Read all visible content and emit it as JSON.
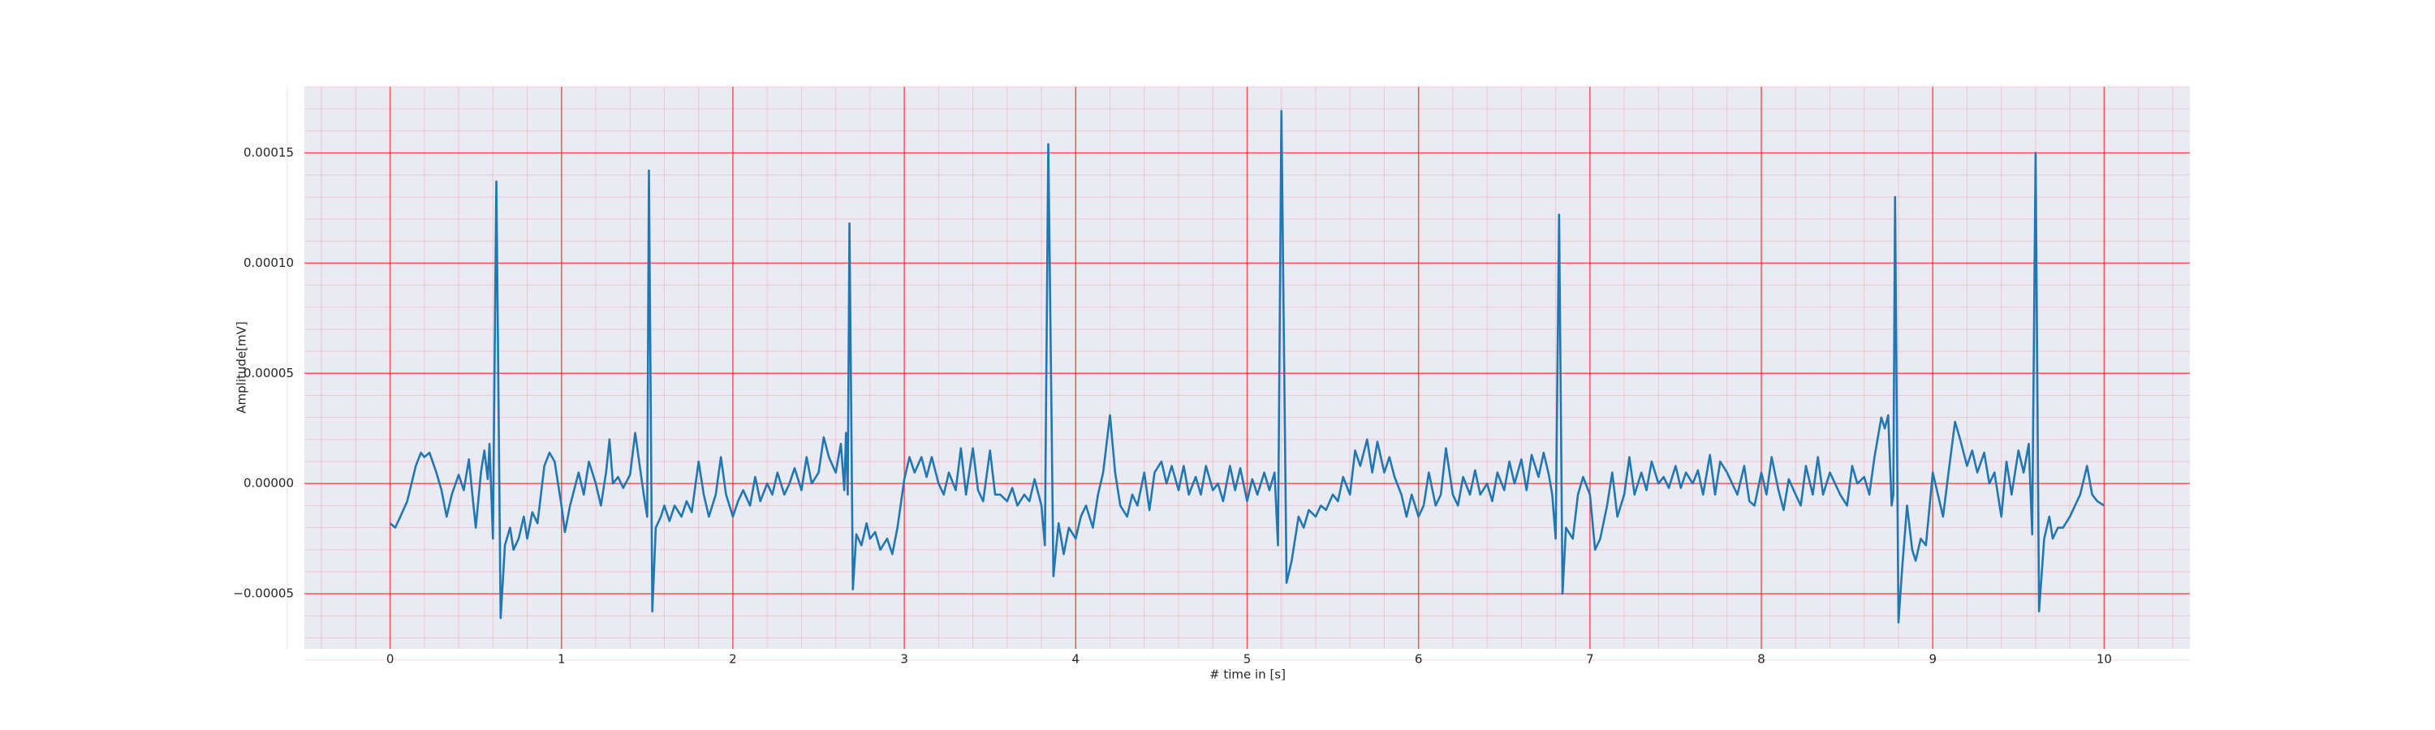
{
  "chart_data": {
    "type": "line",
    "xlabel": "# time in [s]",
    "ylabel": "Amplitude[mV]",
    "color": "#1f77b4",
    "grid": true,
    "minor_grid": true,
    "grid_color": "#ff0000",
    "xlim": [
      -0.5,
      10.5
    ],
    "xticks": [
      0,
      1,
      2,
      3,
      4,
      5,
      6,
      7,
      8,
      9,
      10
    ],
    "ylim": [
      -7.5e-05,
      0.00018
    ],
    "yticks": [
      {
        "value": -5e-05,
        "label": "−0.00005"
      },
      {
        "value": 0,
        "label": "0.00000"
      },
      {
        "value": 5e-05,
        "label": "0.00005"
      },
      {
        "value": 0.0001,
        "label": "0.00010"
      },
      {
        "value": 0.00015,
        "label": "0.00015"
      }
    ],
    "x": [
      0,
      0.03,
      0.06,
      0.1,
      0.15,
      0.18,
      0.2,
      0.23,
      0.27,
      0.3,
      0.33,
      0.36,
      0.4,
      0.43,
      0.46,
      0.48,
      0.5,
      0.53,
      0.55,
      0.57,
      0.58,
      0.6,
      0.62,
      0.645,
      0.67,
      0.7,
      0.72,
      0.75,
      0.78,
      0.8,
      0.83,
      0.86,
      0.9,
      0.93,
      0.96,
      1.0,
      1.02,
      1.05,
      1.1,
      1.13,
      1.16,
      1.2,
      1.23,
      1.26,
      1.28,
      1.3,
      1.33,
      1.36,
      1.4,
      1.43,
      1.46,
      1.48,
      1.5,
      1.51,
      1.53,
      1.55,
      1.58,
      1.6,
      1.63,
      1.66,
      1.7,
      1.73,
      1.76,
      1.8,
      1.83,
      1.86,
      1.9,
      1.93,
      1.96,
      2.0,
      2.03,
      2.06,
      2.1,
      2.13,
      2.16,
      2.2,
      2.23,
      2.26,
      2.3,
      2.33,
      2.36,
      2.4,
      2.43,
      2.46,
      2.5,
      2.53,
      2.56,
      2.6,
      2.63,
      2.65,
      2.66,
      2.67,
      2.68,
      2.7,
      2.72,
      2.75,
      2.78,
      2.8,
      2.83,
      2.86,
      2.9,
      2.93,
      2.96,
      3.0,
      3.03,
      3.06,
      3.1,
      3.13,
      3.16,
      3.2,
      3.23,
      3.26,
      3.3,
      3.33,
      3.36,
      3.4,
      3.43,
      3.46,
      3.5,
      3.53,
      3.56,
      3.6,
      3.63,
      3.66,
      3.7,
      3.73,
      3.76,
      3.8,
      3.82,
      3.84,
      3.87,
      3.9,
      3.93,
      3.96,
      4.0,
      4.03,
      4.06,
      4.1,
      4.13,
      4.16,
      4.2,
      4.23,
      4.26,
      4.3,
      4.33,
      4.36,
      4.4,
      4.43,
      4.46,
      4.5,
      4.53,
      4.56,
      4.6,
      4.63,
      4.66,
      4.7,
      4.73,
      4.76,
      4.8,
      4.83,
      4.86,
      4.9,
      4.93,
      4.96,
      5.0,
      5.03,
      5.06,
      5.1,
      5.13,
      5.16,
      5.18,
      5.2,
      5.23,
      5.26,
      5.3,
      5.33,
      5.36,
      5.4,
      5.43,
      5.46,
      5.5,
      5.53,
      5.56,
      5.6,
      5.63,
      5.66,
      5.7,
      5.73,
      5.76,
      5.8,
      5.83,
      5.86,
      5.9,
      5.93,
      5.96,
      6.0,
      6.03,
      6.06,
      6.1,
      6.13,
      6.16,
      6.2,
      6.23,
      6.26,
      6.3,
      6.33,
      6.36,
      6.4,
      6.43,
      6.46,
      6.5,
      6.53,
      6.56,
      6.6,
      6.63,
      6.66,
      6.7,
      6.73,
      6.76,
      6.78,
      6.8,
      6.82,
      6.84,
      6.86,
      6.9,
      6.93,
      6.96,
      7.0,
      7.03,
      7.06,
      7.1,
      7.13,
      7.16,
      7.2,
      7.23,
      7.26,
      7.3,
      7.33,
      7.36,
      7.4,
      7.43,
      7.46,
      7.5,
      7.53,
      7.56,
      7.6,
      7.63,
      7.66,
      7.7,
      7.73,
      7.76,
      7.8,
      7.83,
      7.86,
      7.9,
      7.93,
      7.96,
      8.0,
      8.03,
      8.06,
      8.1,
      8.13,
      8.16,
      8.2,
      8.23,
      8.26,
      8.3,
      8.33,
      8.36,
      8.4,
      8.43,
      8.46,
      8.5,
      8.53,
      8.56,
      8.6,
      8.63,
      8.66,
      8.7,
      8.72,
      8.74,
      8.76,
      8.77,
      8.78,
      8.8,
      8.82,
      8.85,
      8.88,
      8.9,
      8.93,
      8.96,
      9.0,
      9.03,
      9.06,
      9.1,
      9.13,
      9.16,
      9.2,
      9.23,
      9.26,
      9.3,
      9.33,
      9.36,
      9.4,
      9.43,
      9.46,
      9.5,
      9.53,
      9.56,
      9.58,
      9.6,
      9.62,
      9.65,
      9.68,
      9.7,
      9.73,
      9.76,
      9.8,
      9.83,
      9.86,
      9.9,
      9.93,
      9.96,
      10.0
    ],
    "values": [
      -1.8e-05,
      -2e-05,
      -1.5e-05,
      -8e-06,
      8e-06,
      1.4e-05,
      1.2e-05,
      1.4e-05,
      5e-06,
      -3e-06,
      -1.5e-05,
      -5e-06,
      4e-06,
      -3e-06,
      1.1e-05,
      -5e-06,
      -2e-05,
      5e-06,
      1.5e-05,
      2e-06,
      1.8e-05,
      -2.5e-05,
      0.000137,
      -6.1e-05,
      -2.8e-05,
      -2e-05,
      -3e-05,
      -2.5e-05,
      -1.5e-05,
      -2.5e-05,
      -1.3e-05,
      -1.8e-05,
      8e-06,
      1.4e-05,
      1e-05,
      -1e-05,
      -2.2e-05,
      -1e-05,
      5e-06,
      -5e-06,
      1e-05,
      0,
      -1e-05,
      5e-06,
      2e-05,
      0,
      3e-06,
      -2e-06,
      4e-06,
      2.3e-05,
      6e-06,
      -5e-06,
      -1.5e-05,
      0.000142,
      -5.8e-05,
      -2e-05,
      -1.5e-05,
      -1e-05,
      -1.7e-05,
      -1e-05,
      -1.5e-05,
      -8e-06,
      -1.3e-05,
      1e-05,
      -5e-06,
      -1.5e-05,
      -5e-06,
      1.2e-05,
      -5e-06,
      -1.5e-05,
      -8e-06,
      -3e-06,
      -1e-05,
      3e-06,
      -8e-06,
      0,
      -5e-06,
      5e-06,
      -5e-06,
      0,
      7e-06,
      -3e-06,
      1.2e-05,
      0,
      5e-06,
      2.1e-05,
      1.2e-05,
      5e-06,
      1.8e-05,
      -3e-06,
      2.3e-05,
      -5e-06,
      0.000118,
      -4.8e-05,
      -2.3e-05,
      -2.8e-05,
      -1.8e-05,
      -2.5e-05,
      -2.2e-05,
      -3e-05,
      -2.5e-05,
      -3.2e-05,
      -2e-05,
      2e-06,
      1.2e-05,
      5e-06,
      1.2e-05,
      3e-06,
      1.2e-05,
      0,
      -5e-06,
      5e-06,
      -3e-06,
      1.6e-05,
      -5e-06,
      1.6e-05,
      -3e-06,
      -8e-06,
      1.5e-05,
      -5e-06,
      -5e-06,
      -8e-06,
      -2e-06,
      -1e-05,
      -5e-06,
      -8e-06,
      2e-06,
      -1e-05,
      -2.8e-05,
      0.000154,
      -4.2e-05,
      -1.8e-05,
      -3.2e-05,
      -2e-05,
      -2.5e-05,
      -1.5e-05,
      -1e-05,
      -2e-05,
      -5e-06,
      5e-06,
      3.1e-05,
      5e-06,
      -1e-05,
      -1.5e-05,
      -5e-06,
      -1e-05,
      5e-06,
      -1.2e-05,
      5e-06,
      1e-05,
      0,
      8e-06,
      -3e-06,
      8e-06,
      -5e-06,
      3e-06,
      -5e-06,
      8e-06,
      -3e-06,
      0,
      -8e-06,
      8e-06,
      -3e-06,
      7e-06,
      -8e-06,
      2e-06,
      -5e-06,
      5e-06,
      -3e-06,
      5e-06,
      -2.8e-05,
      0.000169,
      -4.5e-05,
      -3.5e-05,
      -1.5e-05,
      -2e-05,
      -1.2e-05,
      -1.5e-05,
      -1e-05,
      -1.2e-05,
      -5e-06,
      -8e-06,
      3e-06,
      -5e-06,
      1.5e-05,
      8e-06,
      2e-05,
      5e-06,
      1.9e-05,
      5e-06,
      1.2e-05,
      3e-06,
      -5e-06,
      -1.5e-05,
      -5e-06,
      -1.5e-05,
      -1e-05,
      5e-06,
      -1e-05,
      -5e-06,
      1.6e-05,
      -5e-06,
      -1e-05,
      3e-06,
      -5e-06,
      6e-06,
      -5e-06,
      0,
      -8e-06,
      5e-06,
      -3e-06,
      1e-05,
      0,
      1.1e-05,
      -3e-06,
      1.3e-05,
      3e-06,
      1.4e-05,
      4e-06,
      -5e-06,
      -2.5e-05,
      0.000122,
      -5e-05,
      -2e-05,
      -2.5e-05,
      -5e-06,
      3e-06,
      -5e-06,
      -3e-05,
      -2.5e-05,
      -1e-05,
      5e-06,
      -1.5e-05,
      -5e-06,
      1.2e-05,
      -5e-06,
      5e-06,
      -3e-06,
      1e-05,
      0,
      3e-06,
      -2e-06,
      8e-06,
      -2e-06,
      5e-06,
      0,
      6e-06,
      -5e-06,
      1.3e-05,
      -5e-06,
      1e-05,
      5e-06,
      0,
      -5e-06,
      8e-06,
      -8e-06,
      -1e-05,
      5e-06,
      -5e-06,
      1.2e-05,
      -3e-06,
      -1.2e-05,
      2e-06,
      -5e-06,
      -1e-05,
      8e-06,
      -5e-06,
      1.2e-05,
      -5e-06,
      5e-06,
      0,
      -5e-06,
      -1e-05,
      8e-06,
      0,
      3e-06,
      -5e-06,
      1.2e-05,
      3e-05,
      2.5e-05,
      3.1e-05,
      -1e-05,
      -5e-06,
      0.00013,
      -6.3e-05,
      -4e-05,
      -1e-05,
      -3e-05,
      -3.5e-05,
      -2.5e-05,
      -2.8e-05,
      5e-06,
      -5e-06,
      -1.5e-05,
      1e-05,
      2.8e-05,
      2e-05,
      8e-06,
      1.5e-05,
      5e-06,
      1.4e-05,
      0,
      5e-06,
      -1.5e-05,
      1e-05,
      -5e-06,
      1.5e-05,
      5e-06,
      1.8e-05,
      -2.3e-05,
      0.00015,
      -5.8e-05,
      -2.5e-05,
      -1.5e-05,
      -2.5e-05,
      -2e-05,
      -2e-05,
      -1.5e-05,
      -1e-05,
      -5e-06,
      8e-06,
      -5e-06,
      -8e-06,
      -1e-05
    ]
  }
}
